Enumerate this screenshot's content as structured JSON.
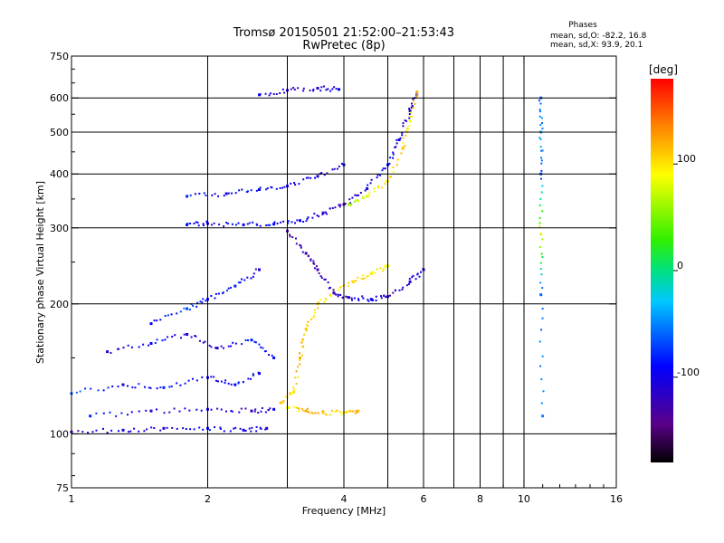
{
  "chart_data": {
    "type": "scatter",
    "title": "Tromsø 20150501 21:52:00–21:53:43",
    "subtitle": "RwPretec (8p)",
    "xlabel": "Frequency [MHz]",
    "ylabel": "Stationary phase Virtual Height [km]",
    "xscale": "log",
    "yscale": "log",
    "xlim": [
      1,
      16
    ],
    "ylim": [
      75,
      750
    ],
    "grid": true,
    "x_ticks": [
      1,
      2,
      4,
      6,
      8,
      10,
      16
    ],
    "x_tick_labels": [
      "1",
      "2",
      "4",
      "6",
      "8",
      "10",
      "16"
    ],
    "x_grid": [
      1,
      2,
      3,
      4,
      5,
      6,
      7,
      8,
      9,
      10
    ],
    "y_ticks": [
      75,
      100,
      200,
      300,
      400,
      500,
      600,
      750
    ],
    "y_tick_labels": [
      "75",
      "100",
      "200",
      "300",
      "400",
      "500",
      "600",
      "750"
    ],
    "y_grid": [
      100,
      200,
      300,
      400,
      500,
      600
    ],
    "stats": {
      "heading": "Phases",
      "line1": "mean, sd,O: -82.2, 16.8",
      "line2": "mean, sd,X:  93.9, 20.1"
    },
    "colorbar": {
      "label": "[deg]",
      "range": [
        -180,
        180
      ],
      "ticks": [
        100,
        0,
        -100
      ],
      "tick_labels": [
        "100",
        "0",
        "-100"
      ]
    },
    "series": [
      {
        "trace": [
          [
            1.0,
            101,
            -120
          ],
          [
            1.3,
            102,
            -100
          ],
          [
            1.6,
            103,
            -110
          ],
          [
            2.0,
            103,
            -90
          ],
          [
            2.4,
            102,
            -105
          ],
          [
            2.7,
            103,
            -100
          ]
        ]
      },
      {
        "trace": [
          [
            1.1,
            110,
            -80
          ],
          [
            1.5,
            113,
            -110
          ],
          [
            2.0,
            114,
            -100
          ],
          [
            2.5,
            113,
            -115
          ],
          [
            2.8,
            114,
            -95
          ]
        ]
      },
      {
        "trace": [
          [
            1.0,
            124,
            -60
          ],
          [
            1.3,
            130,
            -100
          ],
          [
            1.6,
            128,
            -80
          ],
          [
            2.0,
            135,
            -110
          ],
          [
            2.3,
            130,
            -90
          ],
          [
            2.6,
            138,
            -100
          ]
        ]
      },
      {
        "trace": [
          [
            1.2,
            155,
            -110
          ],
          [
            1.5,
            162,
            -90
          ],
          [
            1.8,
            170,
            -100
          ],
          [
            2.1,
            158,
            -120
          ],
          [
            2.5,
            165,
            -80
          ],
          [
            2.8,
            150,
            -95
          ]
        ]
      },
      {
        "trace": [
          [
            1.5,
            180,
            -90
          ],
          [
            1.8,
            195,
            -70
          ],
          [
            2.0,
            205,
            -100
          ],
          [
            2.3,
            220,
            -80
          ],
          [
            2.6,
            240,
            -110
          ]
        ]
      },
      {
        "trace": [
          [
            1.8,
            305,
            -90
          ],
          [
            2.0,
            307,
            -100
          ],
          [
            2.4,
            305,
            -95
          ],
          [
            2.8,
            306,
            -90
          ],
          [
            3.2,
            312,
            -100
          ],
          [
            3.6,
            325,
            -110
          ],
          [
            4.0,
            340,
            -120
          ],
          [
            4.5,
            370,
            -100
          ],
          [
            5.0,
            420,
            -90
          ],
          [
            5.3,
            480,
            -100
          ],
          [
            5.6,
            560,
            -110
          ],
          [
            5.8,
            610,
            -100
          ]
        ]
      },
      {
        "trace": [
          [
            1.8,
            355,
            -80
          ],
          [
            2.2,
            360,
            -100
          ],
          [
            2.6,
            368,
            -90
          ],
          [
            3.0,
            375,
            -100
          ],
          [
            3.5,
            395,
            -110
          ],
          [
            4.0,
            420,
            -100
          ]
        ]
      },
      {
        "trace": [
          [
            2.6,
            610,
            -100
          ],
          [
            3.0,
            625,
            -120
          ],
          [
            3.5,
            632,
            -110
          ],
          [
            3.9,
            628,
            -100
          ]
        ]
      },
      {
        "trace": [
          [
            4.1,
            340,
            60
          ],
          [
            4.5,
            355,
            80
          ],
          [
            5.0,
            385,
            100
          ],
          [
            5.4,
            460,
            110
          ],
          [
            5.6,
            530,
            90
          ],
          [
            5.8,
            620,
            120
          ]
        ]
      },
      {
        "trace": [
          [
            2.9,
            118,
            110
          ],
          [
            3.1,
            125,
            100
          ],
          [
            3.2,
            150,
            120
          ],
          [
            3.3,
            175,
            110
          ],
          [
            3.5,
            200,
            100
          ],
          [
            3.8,
            212,
            90
          ],
          [
            4.2,
            225,
            110
          ],
          [
            4.6,
            235,
            100
          ],
          [
            5.0,
            245,
            80
          ]
        ]
      },
      {
        "trace": [
          [
            3.0,
            115,
            90
          ],
          [
            3.3,
            113,
            120
          ],
          [
            3.6,
            112,
            110
          ],
          [
            4.0,
            112,
            100
          ],
          [
            4.3,
            113,
            120
          ]
        ]
      },
      {
        "trace": [
          [
            3.0,
            295,
            -140
          ],
          [
            3.3,
            262,
            -120
          ],
          [
            3.5,
            240,
            -130
          ],
          [
            3.8,
            212,
            -120
          ],
          [
            4.1,
            207,
            -110
          ],
          [
            4.6,
            205,
            -100
          ],
          [
            5.0,
            208,
            -120
          ],
          [
            5.6,
            225,
            -110
          ],
          [
            6.0,
            240,
            -100
          ]
        ]
      },
      {
        "trace": [
          [
            10.9,
            600,
            -60
          ],
          [
            10.9,
            500,
            -40
          ],
          [
            10.9,
            400,
            -70
          ],
          [
            10.9,
            290,
            80
          ],
          [
            10.9,
            210,
            -60
          ],
          [
            11.0,
            110,
            -50
          ]
        ]
      }
    ]
  }
}
